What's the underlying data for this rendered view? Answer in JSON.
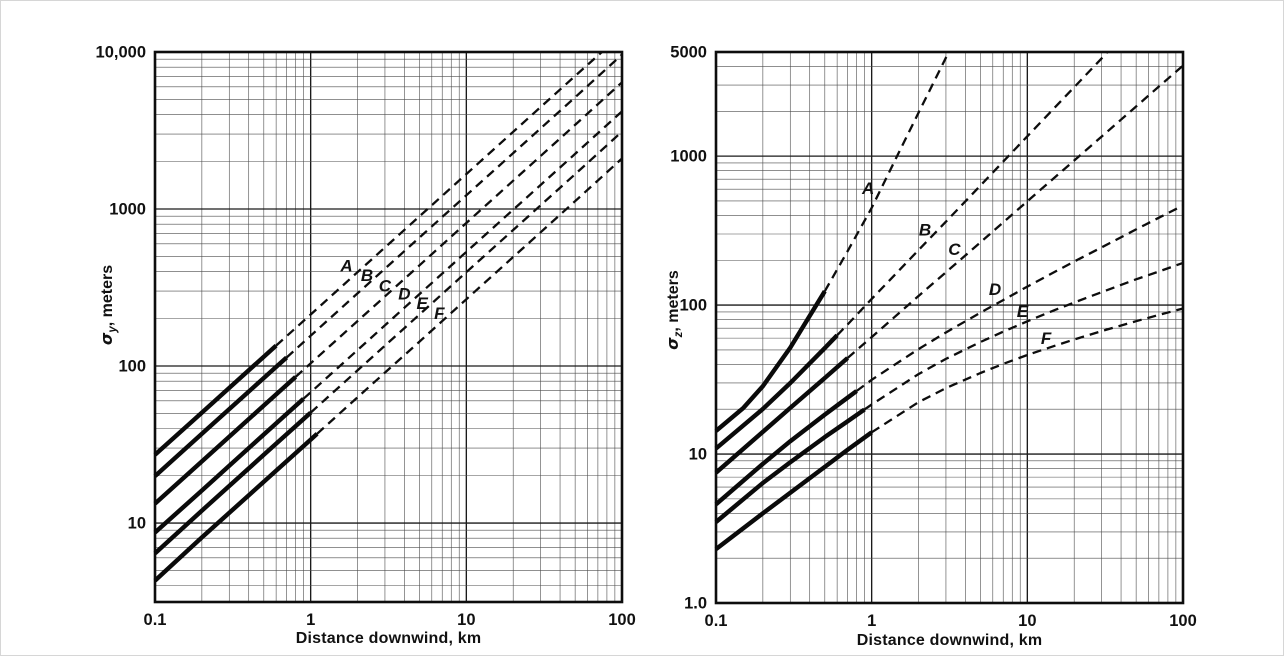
{
  "page": {
    "background": "#ffffff",
    "edge_border_color": "#d6d6d6",
    "ink_color": "#111111"
  },
  "chart_data": [
    {
      "id": "sigma-y",
      "type": "line",
      "title": "",
      "xlabel": "Distance downwind, km",
      "ylabel": {
        "sigma": "σ",
        "subscript": "y",
        "rest": ", meters"
      },
      "x_scale": "log",
      "y_scale": "log",
      "xlim": [
        0.1,
        100
      ],
      "ylim": [
        3.14,
        10000
      ],
      "grid": "log minor grid on, both axes",
      "legend": "curve letters A–F printed beside curves (stability classes)",
      "line_style": "solid bold near source, dashed beyond ~0.6–1.1 km",
      "x_ticks": [
        {
          "value": 0.1,
          "label": "0.1"
        },
        {
          "value": 1,
          "label": "1"
        },
        {
          "value": 10,
          "label": "10"
        },
        {
          "value": 100,
          "label": "100"
        }
      ],
      "y_ticks": [
        {
          "value": 10000,
          "label": "10,000"
        },
        {
          "value": 1000,
          "label": "1000"
        },
        {
          "value": 100,
          "label": "100"
        },
        {
          "value": 10,
          "label": "10"
        }
      ],
      "series": [
        {
          "name": "A",
          "solid_until": 0.6,
          "label_at": {
            "x": 1.7,
            "y": 430
          },
          "points": [
            [
              0.1,
              27.2
            ],
            [
              0.2,
              50.5
            ],
            [
              0.5,
              114.6
            ],
            [
              1,
              213
            ],
            [
              2,
              395.8
            ],
            [
              5,
              898
            ],
            [
              10,
              1669
            ],
            [
              20,
              3101
            ],
            [
              50,
              7029
            ],
            [
              74.3,
              10000
            ]
          ]
        },
        {
          "name": "B",
          "solid_until": 0.7,
          "label_at": {
            "x": 2.3,
            "y": 375
          },
          "points": [
            [
              0.1,
              19.9
            ],
            [
              0.2,
              37.0
            ],
            [
              0.5,
              83.9
            ],
            [
              1,
              156
            ],
            [
              2,
              289.9
            ],
            [
              5,
              658
            ],
            [
              10,
              1222
            ],
            [
              20,
              2271
            ],
            [
              50,
              5148
            ],
            [
              100,
              9619
            ]
          ]
        },
        {
          "name": "C",
          "solid_until": 0.8,
          "label_at": {
            "x": 3.0,
            "y": 320
          },
          "points": [
            [
              0.1,
              13.3
            ],
            [
              0.2,
              24.7
            ],
            [
              0.5,
              56.0
            ],
            [
              1,
              104
            ],
            [
              2,
              193.2
            ],
            [
              5,
              438
            ],
            [
              10,
              815
            ],
            [
              20,
              1514
            ],
            [
              50,
              3432
            ],
            [
              100,
              6413
            ]
          ]
        },
        {
          "name": "D",
          "solid_until": 0.9,
          "label_at": {
            "x": 4.0,
            "y": 285
          },
          "points": [
            [
              0.1,
              8.7
            ],
            [
              0.2,
              16.1
            ],
            [
              0.5,
              36.6
            ],
            [
              1,
              68
            ],
            [
              2,
              126.3
            ],
            [
              5,
              287
            ],
            [
              10,
              533
            ],
            [
              20,
              990
            ],
            [
              50,
              2244
            ],
            [
              100,
              4193
            ]
          ]
        },
        {
          "name": "E",
          "solid_until": 1.0,
          "label_at": {
            "x": 5.2,
            "y": 248
          },
          "points": [
            [
              0.1,
              6.4
            ],
            [
              0.2,
              12.0
            ],
            [
              0.5,
              27.2
            ],
            [
              1,
              50.5
            ],
            [
              2,
              93.8
            ],
            [
              5,
              213
            ],
            [
              10,
              396
            ],
            [
              20,
              735
            ],
            [
              50,
              1667
            ],
            [
              100,
              3114
            ]
          ]
        },
        {
          "name": "F",
          "solid_until": 1.1,
          "label_at": {
            "x": 6.7,
            "y": 215
          },
          "points": [
            [
              0.1,
              4.3
            ],
            [
              0.2,
              8.1
            ],
            [
              0.5,
              18.3
            ],
            [
              1,
              34
            ],
            [
              2,
              63.2
            ],
            [
              5,
              143
            ],
            [
              10,
              266
            ],
            [
              20,
              495
            ],
            [
              50,
              1122
            ],
            [
              100,
              2096
            ]
          ]
        }
      ]
    },
    {
      "id": "sigma-z",
      "type": "line",
      "title": "",
      "xlabel": "Distance downwind, km",
      "ylabel": {
        "sigma": "σ",
        "subscript": "z",
        "rest": ", meters"
      },
      "x_scale": "log",
      "y_scale": "log",
      "xlim": [
        0.1,
        100
      ],
      "ylim": [
        1.0,
        5000
      ],
      "grid": "log minor grid on, both axes",
      "legend": "curve letters A–F printed beside curves (stability classes)",
      "line_style": "solid bold near source, dashed beyond ~0.5–1.0 km",
      "x_ticks": [
        {
          "value": 0.1,
          "label": "0.1"
        },
        {
          "value": 1,
          "label": "1"
        },
        {
          "value": 10,
          "label": "10"
        },
        {
          "value": 100,
          "label": "100"
        }
      ],
      "y_ticks": [
        {
          "value": 5000,
          "label": "5000"
        },
        {
          "value": 1000,
          "label": "1000"
        },
        {
          "value": 100,
          "label": "100"
        },
        {
          "value": 10,
          "label": "10"
        },
        {
          "value": 1,
          "label": "1.0"
        }
      ],
      "series": [
        {
          "name": "A",
          "solid_until": 0.5,
          "label_at": {
            "x": 0.95,
            "y": 600
          },
          "points": [
            [
              0.1,
              14.3
            ],
            [
              0.15,
              20.4
            ],
            [
              0.2,
              28.6
            ],
            [
              0.3,
              51.8
            ],
            [
              0.5,
              124
            ],
            [
              0.7,
              230
            ],
            [
              1,
              450
            ],
            [
              1.5,
              1066
            ],
            [
              2,
              1953
            ],
            [
              2.5,
              3122
            ],
            [
              3,
              4578
            ],
            [
              3.13,
              5000
            ]
          ]
        },
        {
          "name": "B",
          "solid_until": 0.6,
          "label_at": {
            "x": 2.2,
            "y": 316
          },
          "points": [
            [
              0.1,
              10.9
            ],
            [
              0.2,
              20.1
            ],
            [
              0.3,
              30
            ],
            [
              0.5,
              51.4
            ],
            [
              0.7,
              74.1
            ],
            [
              1,
              110
            ],
            [
              1.5,
              171
            ],
            [
              2,
              234
            ],
            [
              3,
              363
            ],
            [
              5,
              635
            ],
            [
              7,
              919
            ],
            [
              10,
              1358
            ],
            [
              15,
              2117
            ],
            [
              20,
              2904
            ],
            [
              30,
              4530
            ],
            [
              32.7,
              5000
            ]
          ]
        },
        {
          "name": "C",
          "solid_until": 0.7,
          "label_at": {
            "x": 3.4,
            "y": 235
          },
          "points": [
            [
              0.1,
              7.5
            ],
            [
              0.2,
              14.1
            ],
            [
              0.3,
              20.4
            ],
            [
              0.5,
              32.4
            ],
            [
              0.7,
              44.1
            ],
            [
              1,
              61
            ],
            [
              2,
              115
            ],
            [
              3,
              166
            ],
            [
              5,
              264
            ],
            [
              7,
              359
            ],
            [
              10,
              497
            ],
            [
              20,
              934
            ],
            [
              30,
              1352
            ],
            [
              50,
              2153
            ],
            [
              70,
              2934
            ],
            [
              100,
              4050
            ]
          ]
        },
        {
          "name": "D",
          "solid_until": 0.8,
          "label_at": {
            "x": 6.2,
            "y": 126
          },
          "points": [
            [
              0.1,
              4.6
            ],
            [
              0.2,
              8.6
            ],
            [
              0.3,
              12.2
            ],
            [
              0.5,
              18.4
            ],
            [
              0.7,
              23.9
            ],
            [
              1,
              31.5
            ],
            [
              2,
              50.6
            ],
            [
              3,
              65.5
            ],
            [
              5,
              89
            ],
            [
              7,
              108
            ],
            [
              10,
              133
            ],
            [
              15,
              167
            ],
            [
              20,
              196
            ],
            [
              30,
              244
            ],
            [
              50,
              322
            ],
            [
              70,
              386
            ],
            [
              100,
              466
            ]
          ]
        },
        {
          "name": "E",
          "solid_until": 0.9,
          "label_at": {
            "x": 9.3,
            "y": 90
          },
          "points": [
            [
              0.1,
              3.5
            ],
            [
              0.2,
              6.4
            ],
            [
              0.3,
              8.8
            ],
            [
              0.5,
              13
            ],
            [
              0.7,
              16.6
            ],
            [
              1,
              21.5
            ],
            [
              2,
              34.4
            ],
            [
              3,
              43.5
            ],
            [
              5,
              56.5
            ],
            [
              7,
              66.3
            ],
            [
              10,
              77.8
            ],
            [
              15,
              92.6
            ],
            [
              20,
              104
            ],
            [
              30,
              122
            ],
            [
              50,
              149
            ],
            [
              70,
              168
            ],
            [
              100,
              192
            ]
          ]
        },
        {
          "name": "F",
          "solid_until": 1.0,
          "label_at": {
            "x": 13.2,
            "y": 59
          },
          "points": [
            [
              0.1,
              2.3
            ],
            [
              0.2,
              4.0
            ],
            [
              0.3,
              5.5
            ],
            [
              0.5,
              8.2
            ],
            [
              0.7,
              10.7
            ],
            [
              1,
              14
            ],
            [
              2,
              22.3
            ],
            [
              3,
              27.7
            ],
            [
              5,
              35
            ],
            [
              7,
              40.3
            ],
            [
              10,
              46.2
            ],
            [
              15,
              53.3
            ],
            [
              20,
              58.7
            ],
            [
              30,
              66.9
            ],
            [
              50,
              78
            ],
            [
              70,
              85.9
            ],
            [
              100,
              94.8
            ]
          ]
        }
      ]
    }
  ]
}
